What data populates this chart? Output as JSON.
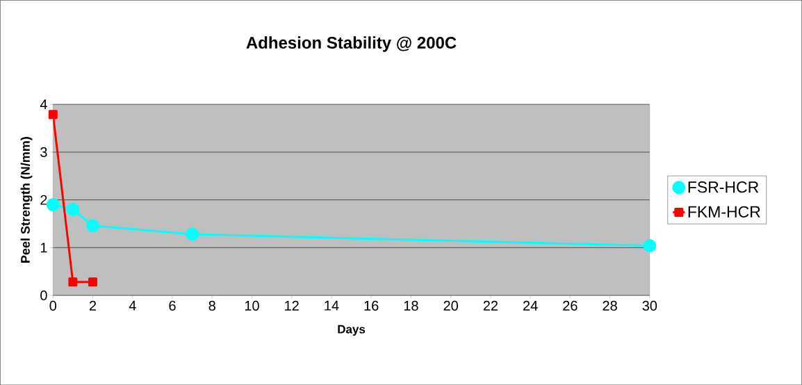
{
  "chart_data": {
    "type": "line",
    "title": "Adhesion Stability @ 200C",
    "xlabel": "Days",
    "ylabel": "Peel Strength (N/mm)",
    "xlim": [
      0,
      30
    ],
    "xticks": [
      0,
      2,
      4,
      6,
      8,
      10,
      12,
      14,
      16,
      18,
      20,
      22,
      24,
      26,
      28,
      30
    ],
    "ylim": [
      0,
      4
    ],
    "yticks": [
      0,
      1,
      2,
      3,
      4
    ],
    "grid": "y",
    "legend": "right",
    "line_style": "solid",
    "series": [
      {
        "name": "FSR-HCR",
        "color": "#00ffff",
        "marker": "circle",
        "x": [
          0,
          1,
          2,
          7,
          30
        ],
        "values": [
          1.9,
          1.8,
          1.46,
          1.28,
          1.04
        ]
      },
      {
        "name": "FKM-HCR",
        "color": "#ff0000",
        "marker": "square",
        "x": [
          0,
          1,
          2
        ],
        "values": [
          3.79,
          0.28,
          0.28
        ]
      }
    ]
  }
}
